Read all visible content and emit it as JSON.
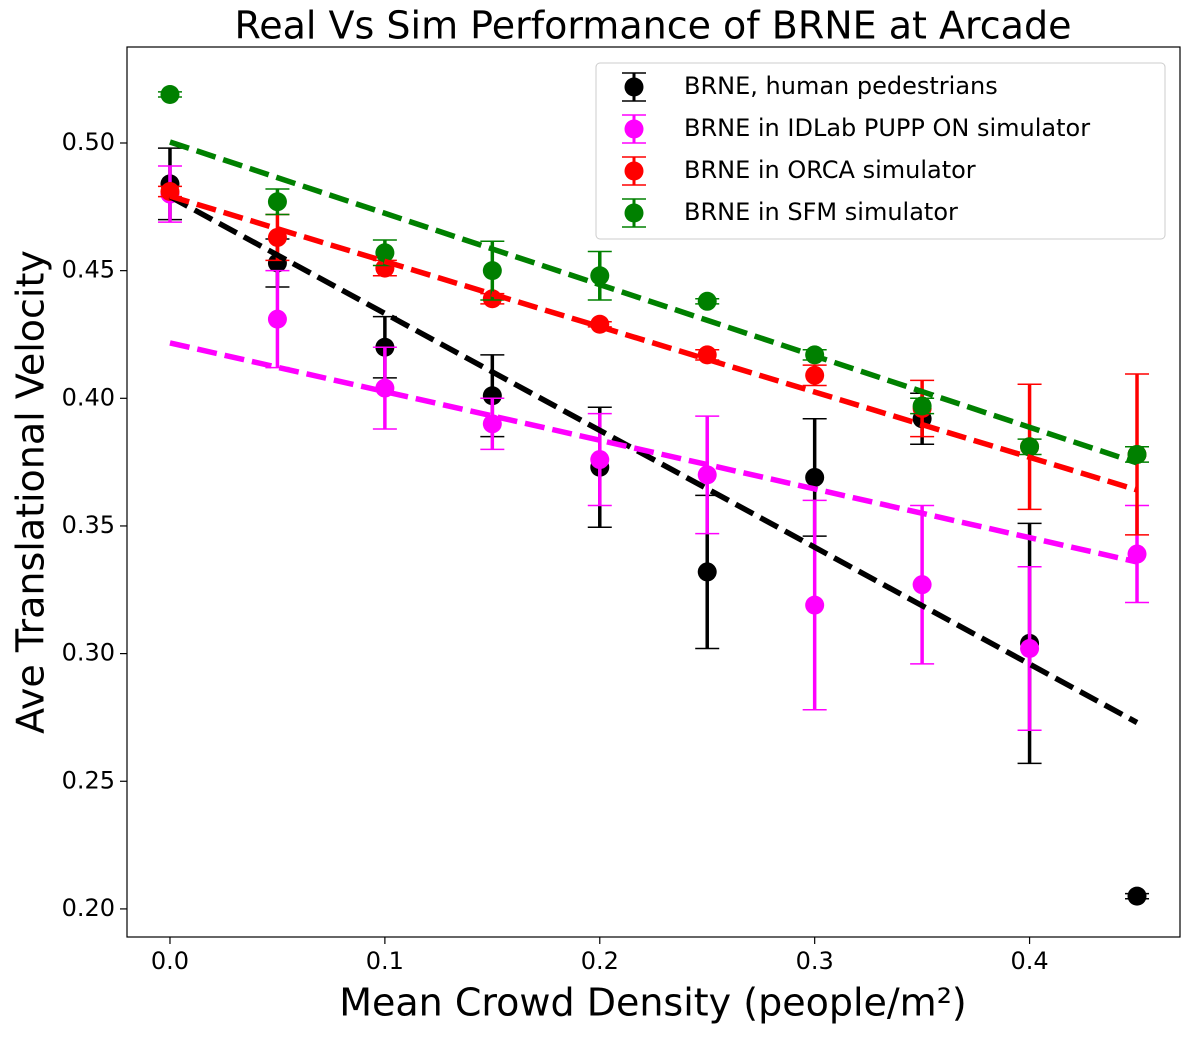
{
  "chart_data": {
    "type": "errorbar",
    "title": "Real Vs Sim Performance of BRNE at Arcade",
    "xlabel": "Mean Crowd Density (people/m²)",
    "ylabel": "Ave Translational Velocity",
    "x": [
      0,
      0.05,
      0.1,
      0.15,
      0.2,
      0.25,
      0.3,
      0.35,
      0.4,
      0.45
    ],
    "xlim": [
      -0.02,
      0.47
    ],
    "xticks": [
      {
        "value": 0,
        "label": "0.0"
      },
      0.1,
      0.2,
      0.3,
      0.4
    ],
    "ylim": [
      0.189,
      0.5376
    ],
    "yticks": [
      {
        "value": 0.2,
        "label": "0.20"
      },
      0.25,
      {
        "value": 0.3,
        "label": "0.30"
      },
      0.35,
      {
        "value": 0.4,
        "label": "0.40"
      },
      0.45,
      {
        "value": 0.5,
        "label": "0.50"
      }
    ],
    "legend": "upper right",
    "series": [
      {
        "name": "BRNE, human pedestrians",
        "color": "#000000",
        "values": [
          0.484,
          0.453,
          0.42,
          0.401,
          0.373,
          0.332,
          0.369,
          0.392,
          0.304,
          0.205
        ],
        "errors": [
          0.014,
          0.0094,
          0.012,
          0.016,
          0.0235,
          0.03,
          0.023,
          0.01,
          0.047,
          0.001
        ],
        "trend": {
          "x": [
            0,
            0.45
          ],
          "values": [
            0.479,
            0.273
          ]
        }
      },
      {
        "name": "BRNE in IDLab PUPP ON simulator",
        "color": "#ff00ff",
        "values": [
          0.48,
          0.431,
          0.404,
          0.39,
          0.376,
          0.37,
          0.319,
          0.327,
          0.302,
          0.339
        ],
        "errors": [
          0.011,
          0.019,
          0.016,
          0.01,
          0.018,
          0.023,
          0.041,
          0.031,
          0.032,
          0.019
        ],
        "trend": {
          "x": [
            0,
            0.45
          ],
          "values": [
            0.4217,
            0.3359
          ]
        }
      },
      {
        "name": "BRNE in ORCA simulator",
        "color": "#ff0000",
        "values": [
          0.481,
          0.463,
          0.451,
          0.439,
          0.429,
          0.417,
          0.409,
          0.396,
          0.381,
          0.378
        ],
        "errors": [
          0.002,
          0.009,
          0.003,
          0.002,
          0.001,
          0.002,
          0.004,
          0.011,
          0.0245,
          0.0315
        ],
        "trend": {
          "x": [
            0,
            0.45
          ],
          "values": [
            0.4792,
            0.3641
          ]
        }
      },
      {
        "name": "BRNE in SFM simulator",
        "color": "#008000",
        "values": [
          0.519,
          0.477,
          0.457,
          0.45,
          0.448,
          0.438,
          0.417,
          0.397,
          0.381,
          0.378
        ],
        "errors": [
          0.001,
          0.005,
          0.005,
          0.0115,
          0.0095,
          0.001,
          0.002,
          0.003,
          0.003,
          0.003
        ],
        "trend": {
          "x": [
            0,
            0.45
          ],
          "values": [
            0.5004,
            0.3747
          ]
        }
      }
    ]
  }
}
